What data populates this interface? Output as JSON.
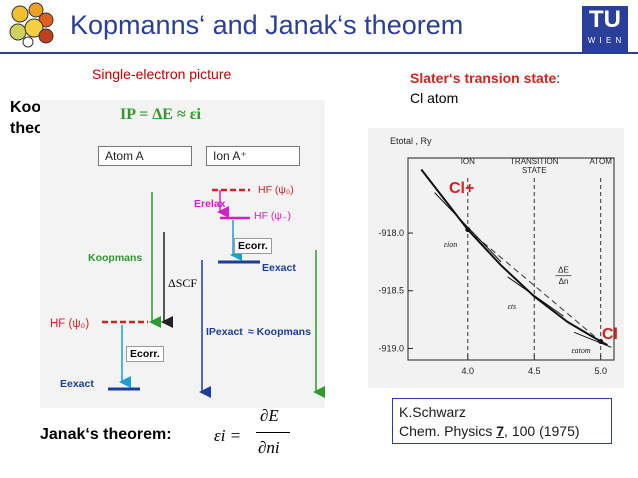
{
  "header": {
    "title": "Kopmanns‘ and Janak‘s theorem",
    "tu_logo": "TU",
    "tu_subtext": "W I E N"
  },
  "left": {
    "single_electron": "Single-electron picture",
    "koopmans_label": "Koopmans theorem:",
    "ip_formula": "IP = ΔE ≈ εi"
  },
  "diagram": {
    "atom_a": "Atom A",
    "ion_a": "Ion A⁺",
    "hf_psi0_top": "HF (ψ₀)",
    "e_relax": "Erelax",
    "hf_psi_minus": "HF (ψ₋)",
    "ecorr_top": "Ecorr.",
    "eexact_top": "Eexact",
    "koopmans": "Koopmans",
    "delta_scf": "ΔSCF",
    "hf_psi0_left": "HF (ψ₀)",
    "ecorr_bottom": "Ecorr.",
    "eexact_bottom": "Eexact",
    "ip_exact": "IPexact",
    "approx_koopmans": "≈ Koopmans"
  },
  "right": {
    "slater_title": "Slater‘s transion state",
    "slater_colon": ":",
    "cl_atom": "Cl atom",
    "cl_plus_label": "Cl+",
    "cl_label": "Cl"
  },
  "chart_data": {
    "type": "line",
    "ylabel": "Etotal , Ry",
    "x_ticks": [
      "4.0",
      "4.5",
      "5.0"
    ],
    "y_ticks": [
      "-918.0",
      "-918.5",
      "-919.0"
    ],
    "xlim": [
      3.55,
      5.1
    ],
    "ylim": [
      -919.1,
      -917.35
    ],
    "top_labels": [
      "ION",
      "TRANSITION STATE",
      "ATOM"
    ],
    "curve_labels": [
      "εion",
      "εts",
      "εatom"
    ],
    "slope_label": "ΔE / Δn",
    "series": [
      {
        "x": [
          3.65,
          4.0,
          4.25,
          4.5,
          4.75,
          5.0,
          5.05
        ],
        "y": [
          -917.45,
          -917.97,
          -918.28,
          -918.55,
          -918.77,
          -918.94,
          -918.97
        ]
      }
    ],
    "secant": {
      "x": [
        4.0,
        5.0
      ],
      "y": [
        -917.97,
        -918.94
      ]
    }
  },
  "janak": {
    "label": "Janak‘s theorem:",
    "formula_lhs": "εi =",
    "formula_num": "∂E",
    "formula_den": "∂ni"
  },
  "citation": {
    "author": "K.Schwarz",
    "journal": "Chem. Physics ",
    "volume": "7",
    "rest": ", 100 (1975)"
  }
}
